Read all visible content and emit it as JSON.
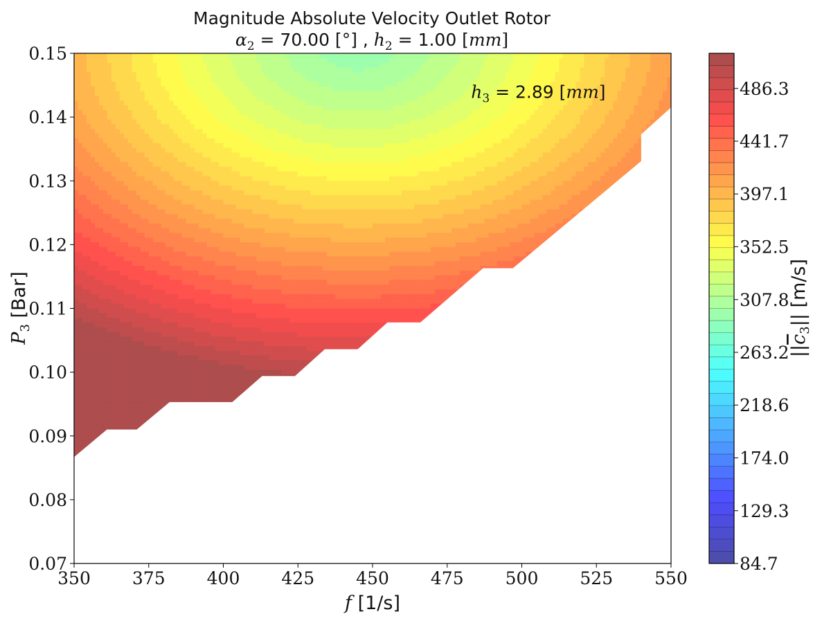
{
  "chart_data": {
    "type": "contour",
    "title_line1": "Magnitude Absolute Velocity Outlet Rotor",
    "title_line2_parts": [
      "α",
      "2",
      " = 70.00 [°] , ",
      "h",
      "2",
      " = 1.00 [",
      "mm",
      "]"
    ],
    "xlabel_parts": [
      "f",
      " [1/s]"
    ],
    "ylabel_parts": [
      "P",
      "3",
      " [Bar]"
    ],
    "x_ticks": [
      "350",
      "375",
      "400",
      "425",
      "450",
      "475",
      "500",
      "525",
      "550"
    ],
    "y_ticks": [
      "0.07",
      "0.08",
      "0.09",
      "0.10",
      "0.11",
      "0.12",
      "0.13",
      "0.14",
      "0.15"
    ],
    "xlim": [
      350,
      550
    ],
    "ylim": [
      0.07,
      0.15
    ],
    "annotation_parts": [
      "h",
      "3",
      " = 2.89 [",
      "mm",
      "]"
    ],
    "annotation_pos": {
      "x": 483,
      "y": 0.143
    },
    "colorbar": {
      "label_parts": [
        "||",
        "c",
        "3",
        "|| [m/s]"
      ],
      "ticks": [
        "84.7",
        "129.3",
        "174.0",
        "218.6",
        "263.2",
        "307.8",
        "352.5",
        "397.1",
        "441.7",
        "486.3"
      ],
      "min": 84.7,
      "max": 516.0,
      "levels": 42,
      "colormap": "jet"
    },
    "field_model": {
      "center_f": 445,
      "center_p": 0.152,
      "base_value": 290,
      "f_scale": 165,
      "p_scale": 0.0525,
      "exponent": 1.25,
      "gain": 215
    },
    "valid_boundary": [
      {
        "f": 350,
        "p": 0.0867
      },
      {
        "f": 361,
        "p": 0.091
      },
      {
        "f": 371,
        "p": 0.091
      },
      {
        "f": 382,
        "p": 0.0953
      },
      {
        "f": 403,
        "p": 0.0953
      },
      {
        "f": 413,
        "p": 0.0994
      },
      {
        "f": 424,
        "p": 0.0994
      },
      {
        "f": 434,
        "p": 0.1036
      },
      {
        "f": 445,
        "p": 0.1036
      },
      {
        "f": 455,
        "p": 0.1078
      },
      {
        "f": 466,
        "p": 0.1078
      },
      {
        "f": 487,
        "p": 0.1163
      },
      {
        "f": 497,
        "p": 0.1163
      },
      {
        "f": 540,
        "p": 0.1331
      },
      {
        "f": 540,
        "p": 0.1373
      },
      {
        "f": 550,
        "p": 0.1415
      }
    ]
  }
}
